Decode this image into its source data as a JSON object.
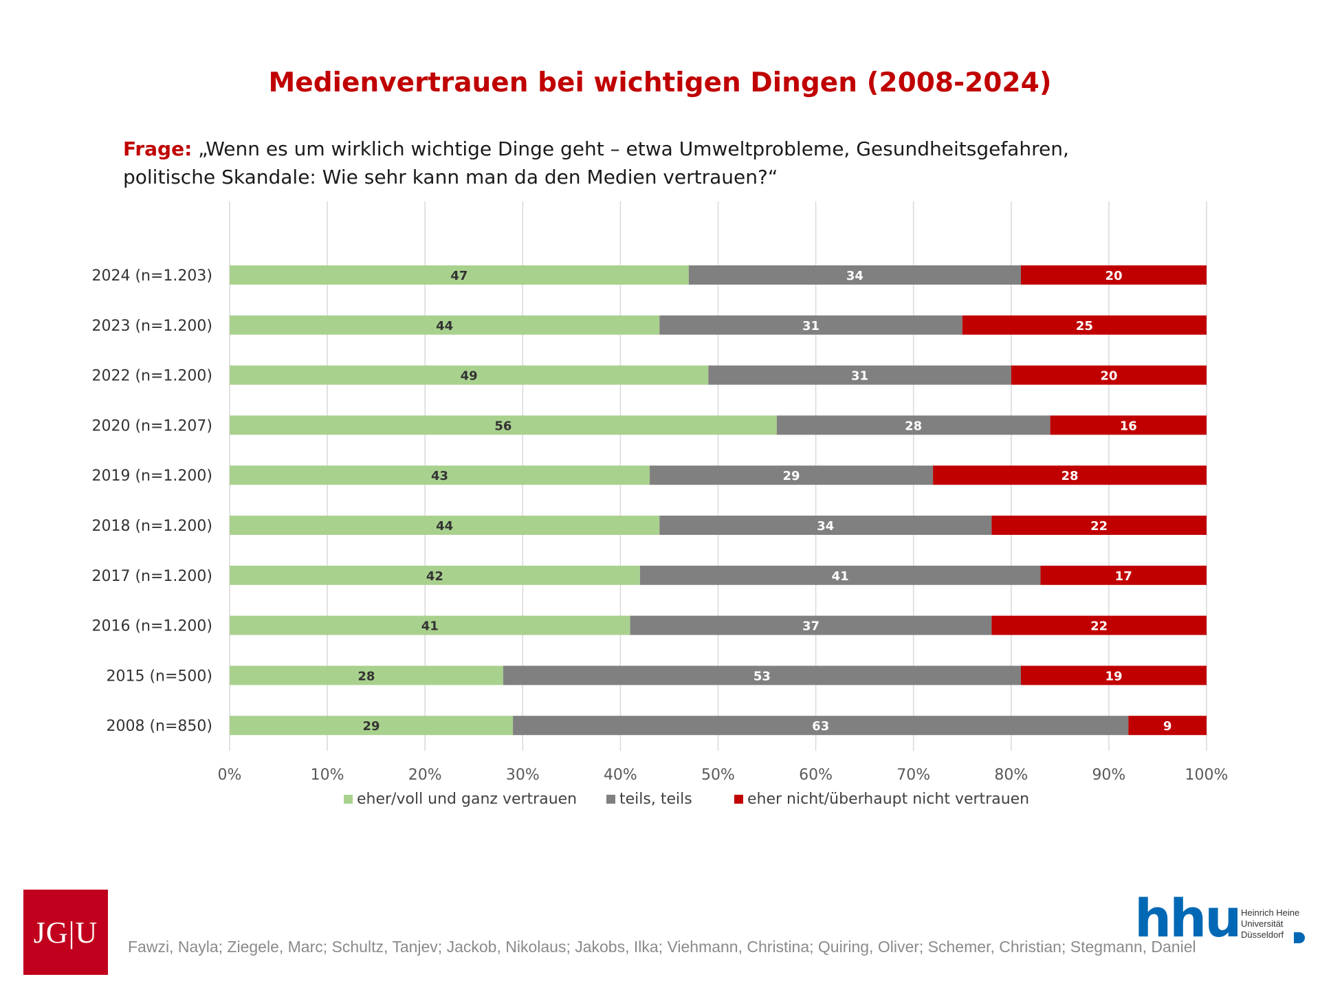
{
  "title": "Medienvertrauen bei wichtigen Dingen (2008-2024)",
  "question": {
    "label": "Frage:",
    "text": " „Wenn es um wirklich wichtige Dinge geht – etwa Umweltprobleme, Gesundheitsgefahren, politische Skandale: Wie sehr kann man da den Medien vertrauen?“"
  },
  "chart_data": {
    "type": "bar",
    "orientation": "horizontal",
    "stacked": true,
    "categories": [
      "2024 (n=1.203)",
      "2023 (n=1.200)",
      "2022 (n=1.200)",
      "2020 (n=1.207)",
      "2019 (n=1.200)",
      "2018 (n=1.200)",
      "2017 (n=1.200)",
      "2016 (n=1.200)",
      "2015 (n=500)",
      "2008 (n=850)"
    ],
    "series": [
      {
        "name": "eher/voll und ganz vertrauen",
        "color": "#a9d18e",
        "label_color": "#333333",
        "values": [
          47,
          44,
          49,
          56,
          43,
          44,
          42,
          41,
          28,
          29
        ]
      },
      {
        "name": "teils, teils",
        "color": "#808080",
        "label_color": "#ffffff",
        "values": [
          34,
          31,
          31,
          28,
          29,
          34,
          41,
          37,
          53,
          63
        ]
      },
      {
        "name": "eher nicht/überhaupt nicht vertrauen",
        "color": "#c00000",
        "label_color": "#ffffff",
        "values": [
          20,
          25,
          20,
          16,
          28,
          22,
          17,
          22,
          19,
          9
        ]
      }
    ],
    "xlim": [
      0,
      100
    ],
    "xticks": [
      "0%",
      "10%",
      "20%",
      "30%",
      "40%",
      "50%",
      "60%",
      "70%",
      "80%",
      "90%",
      "100%"
    ],
    "grid": true,
    "legend": "bottom"
  },
  "footer": {
    "authors": "Fawzi, Nayla; Ziegele, Marc; Schultz, Tanjev; Jackob, Nikolaus; Jakobs, Ilka; Viehmann, Christina; Quiring, Oliver; Schemer, Christian; Stegmann, Daniel",
    "jgu_logo": "JG|U",
    "hhu_logo": "hhu",
    "hhu_subtitle": [
      "Heinrich Heine",
      "Universität",
      "Düsseldorf"
    ]
  }
}
